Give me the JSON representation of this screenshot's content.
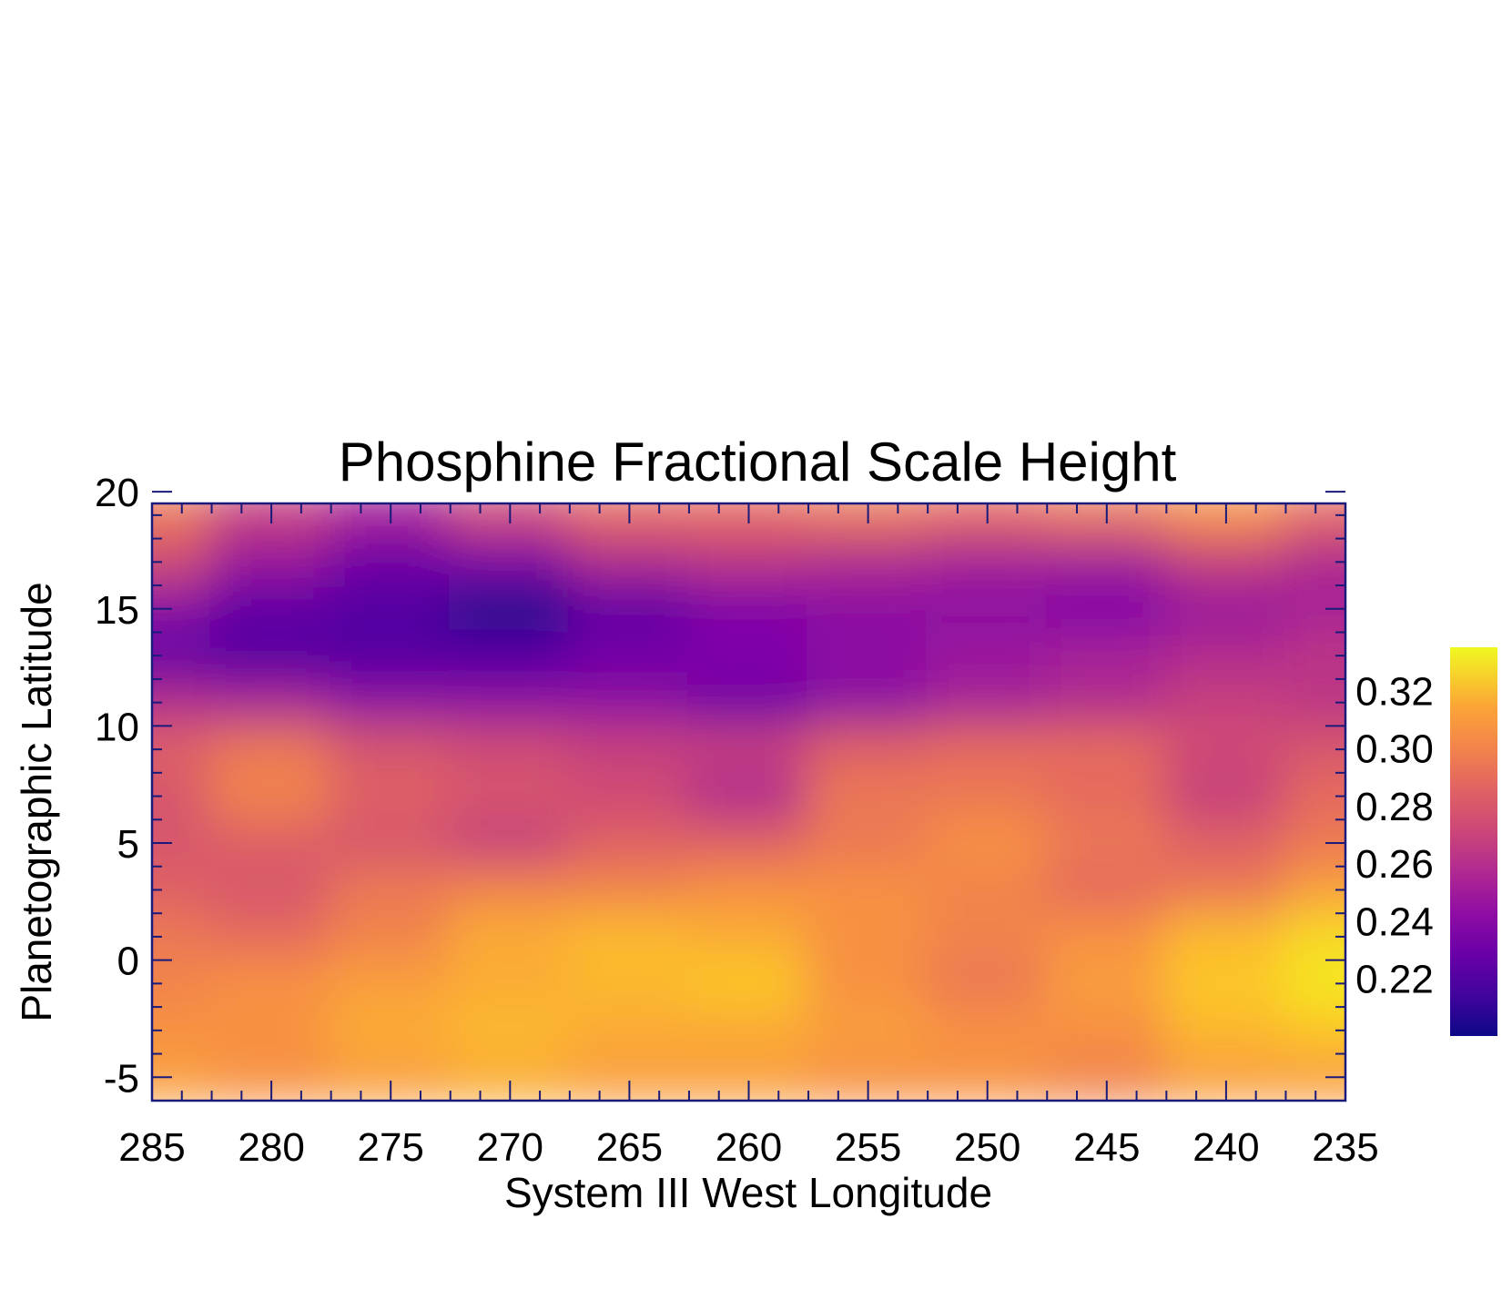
{
  "chart_data": {
    "type": "heatmap",
    "title": "Phosphine Fractional Scale Height",
    "xlabel": "System III West Longitude",
    "ylabel": "Planetographic Latitude",
    "xlim": [
      285,
      235
    ],
    "ylim": [
      -6,
      19.5
    ],
    "x_ticks": [
      "285",
      "280",
      "275",
      "270",
      "265",
      "260",
      "255",
      "250",
      "245",
      "240",
      "235"
    ],
    "y_ticks": [
      "-5",
      "0",
      "5",
      "10",
      "15",
      "20"
    ],
    "colorbar": {
      "range": [
        0.2,
        0.335
      ],
      "ticks": [
        "0.22",
        "0.24",
        "0.26",
        "0.28",
        "0.30",
        "0.32"
      ],
      "colormap": "plasma"
    },
    "grid": false,
    "x": [
      285,
      280,
      275,
      270,
      265,
      260,
      255,
      250,
      245,
      240,
      235
    ],
    "y": [
      19,
      17,
      15,
      13,
      11,
      9,
      7,
      5,
      3,
      1,
      -1,
      -3,
      -5
    ],
    "z": [
      [
        0.29,
        0.265,
        0.25,
        0.27,
        0.285,
        0.285,
        0.29,
        0.285,
        0.29,
        0.3,
        0.285
      ],
      [
        0.27,
        0.245,
        0.23,
        0.235,
        0.255,
        0.26,
        0.255,
        0.25,
        0.25,
        0.265,
        0.255
      ],
      [
        0.24,
        0.225,
        0.22,
        0.205,
        0.225,
        0.235,
        0.24,
        0.24,
        0.235,
        0.245,
        0.25
      ],
      [
        0.225,
        0.22,
        0.22,
        0.22,
        0.23,
        0.235,
        0.24,
        0.245,
        0.25,
        0.255,
        0.26
      ],
      [
        0.255,
        0.25,
        0.24,
        0.24,
        0.24,
        0.23,
        0.24,
        0.25,
        0.255,
        0.265,
        0.26
      ],
      [
        0.28,
        0.29,
        0.275,
        0.27,
        0.265,
        0.265,
        0.28,
        0.285,
        0.285,
        0.27,
        0.275
      ],
      [
        0.275,
        0.295,
        0.28,
        0.275,
        0.27,
        0.255,
        0.29,
        0.29,
        0.285,
        0.265,
        0.285
      ],
      [
        0.275,
        0.28,
        0.275,
        0.265,
        0.28,
        0.28,
        0.29,
        0.3,
        0.29,
        0.28,
        0.29
      ],
      [
        0.28,
        0.275,
        0.29,
        0.295,
        0.295,
        0.3,
        0.3,
        0.295,
        0.285,
        0.29,
        0.305
      ],
      [
        0.29,
        0.285,
        0.295,
        0.31,
        0.315,
        0.31,
        0.3,
        0.295,
        0.3,
        0.315,
        0.325
      ],
      [
        0.295,
        0.3,
        0.305,
        0.31,
        0.315,
        0.32,
        0.3,
        0.29,
        0.305,
        0.32,
        0.33
      ],
      [
        0.3,
        0.3,
        0.31,
        0.315,
        0.31,
        0.31,
        0.305,
        0.3,
        0.3,
        0.315,
        0.32
      ],
      [
        0.305,
        0.3,
        0.305,
        0.31,
        0.305,
        0.305,
        0.3,
        0.3,
        0.295,
        0.305,
        0.305
      ]
    ]
  }
}
